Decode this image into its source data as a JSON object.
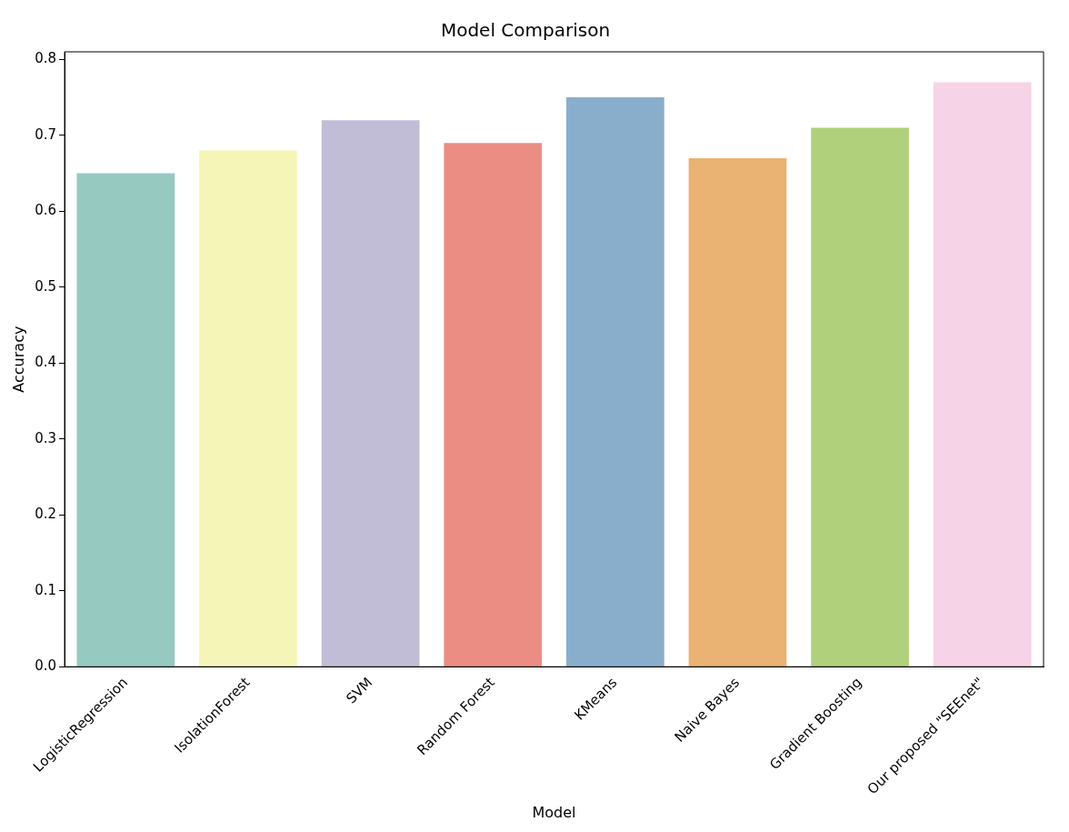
{
  "chart_data": {
    "type": "bar",
    "title": "Model Comparison",
    "xlabel": "Model",
    "ylabel": "Accuracy",
    "categories": [
      "LogisticRegression",
      "IsolationForest",
      "SVM",
      "Random Forest",
      "KMeans",
      "Naive Bayes",
      "Gradient Boosting",
      "Our proposed \"SEEnet\""
    ],
    "values": [
      0.65,
      0.68,
      0.72,
      0.69,
      0.75,
      0.67,
      0.71,
      0.77
    ],
    "colors": [
      "#96cac1",
      "#f5f5b8",
      "#c1bdd6",
      "#eb8d82",
      "#89aecb",
      "#eab273",
      "#b1d07c",
      "#f6d3e6"
    ],
    "ylim": [
      0,
      0.81
    ],
    "yticks": [
      {
        "value": 0,
        "label": "0.0"
      },
      0.1,
      0.2,
      0.3,
      0.4,
      0.5,
      0.6,
      0.7,
      0.8
    ],
    "grid": false,
    "legend": false
  }
}
